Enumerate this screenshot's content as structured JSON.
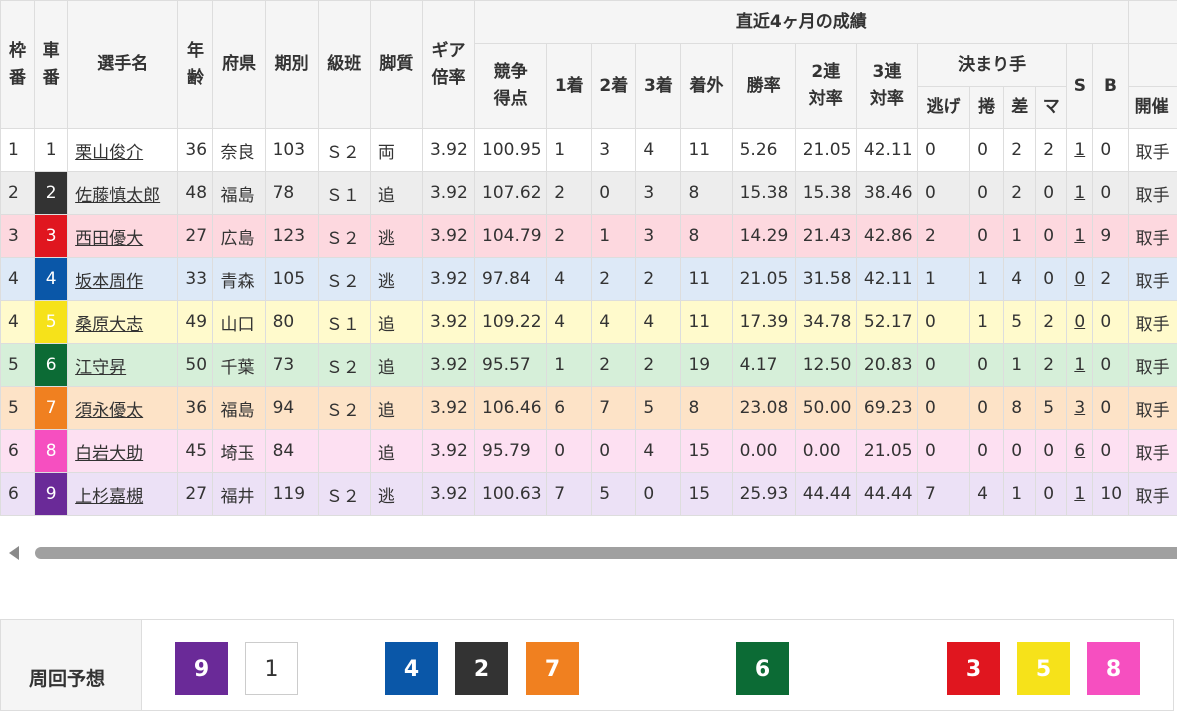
{
  "header": {
    "waku": "枠番",
    "sha": "車番",
    "name": "選手名",
    "age": "年齢",
    "pref": "府県",
    "term": "期別",
    "class": "級班",
    "leg": "脚質",
    "gear": "ギア倍率",
    "recent": "直近4ヶ月の成績",
    "score": "競争得点",
    "first": "1着",
    "second": "2着",
    "third": "3着",
    "out": "着外",
    "win": "勝率",
    "ren2": "2連対率",
    "ren3": "3連対率",
    "kimarite": "決まり手",
    "nige": "逃げ",
    "makuri": "捲",
    "sashi": "差",
    "mark": "マ",
    "s": "S",
    "b": "B",
    "kaisai": "開催"
  },
  "rows": [
    {
      "waku": "1",
      "sha": "1",
      "name": "栗山俊介",
      "age": "36",
      "pref": "奈良",
      "term": "103",
      "class": "Ｓ２",
      "leg": "両",
      "gear": "3.92",
      "score": "100.95",
      "r1": "1",
      "r2": "3",
      "r3": "4",
      "out": "11",
      "win": "5.26",
      "ren2": "21.05",
      "ren3": "42.11",
      "nige": "0",
      "makuri": "0",
      "sashi": "2",
      "mark": "2",
      "s": "1",
      "b": "0",
      "kaisai": "取手",
      "rowColor": "#ffffff",
      "badgeBg": "#ffffff",
      "badgeFg": "#333333"
    },
    {
      "waku": "2",
      "sha": "2",
      "name": "佐藤慎太郎",
      "age": "48",
      "pref": "福島",
      "term": "78",
      "class": "Ｓ１",
      "leg": "追",
      "gear": "3.92",
      "score": "107.62",
      "r1": "2",
      "r2": "0",
      "r3": "3",
      "out": "8",
      "win": "15.38",
      "ren2": "15.38",
      "ren3": "38.46",
      "nige": "0",
      "makuri": "0",
      "sashi": "2",
      "mark": "0",
      "s": "1",
      "b": "0",
      "kaisai": "取手",
      "rowColor": "#ededed",
      "badgeBg": "#333333",
      "badgeFg": "#ffffff"
    },
    {
      "waku": "3",
      "sha": "3",
      "name": "西田優大",
      "age": "27",
      "pref": "広島",
      "term": "123",
      "class": "Ｓ２",
      "leg": "逃",
      "gear": "3.92",
      "score": "104.79",
      "r1": "2",
      "r2": "1",
      "r3": "3",
      "out": "8",
      "win": "14.29",
      "ren2": "21.43",
      "ren3": "42.86",
      "nige": "2",
      "makuri": "0",
      "sashi": "1",
      "mark": "0",
      "s": "1",
      "b": "9",
      "kaisai": "取手",
      "rowColor": "#fdd8df",
      "badgeBg": "#e0161f",
      "badgeFg": "#ffffff"
    },
    {
      "waku": "4",
      "sha": "4",
      "name": "坂本周作",
      "age": "33",
      "pref": "青森",
      "term": "105",
      "class": "Ｓ２",
      "leg": "逃",
      "gear": "3.92",
      "score": "97.84",
      "r1": "4",
      "r2": "2",
      "r3": "2",
      "out": "11",
      "win": "21.05",
      "ren2": "31.58",
      "ren3": "42.11",
      "nige": "1",
      "makuri": "1",
      "sashi": "4",
      "mark": "0",
      "s": "0",
      "b": "2",
      "kaisai": "取手",
      "rowColor": "#dde9f7",
      "badgeBg": "#0a57a8",
      "badgeFg": "#ffffff"
    },
    {
      "waku": "4",
      "sha": "5",
      "name": "桑原大志",
      "age": "49",
      "pref": "山口",
      "term": "80",
      "class": "Ｓ１",
      "leg": "追",
      "gear": "3.92",
      "score": "109.22",
      "r1": "4",
      "r2": "4",
      "r3": "4",
      "out": "11",
      "win": "17.39",
      "ren2": "34.78",
      "ren3": "52.17",
      "nige": "0",
      "makuri": "1",
      "sashi": "5",
      "mark": "2",
      "s": "0",
      "b": "0",
      "kaisai": "取手",
      "rowColor": "#fffacc",
      "badgeBg": "#f6e21a",
      "badgeFg": "#ffffff"
    },
    {
      "waku": "5",
      "sha": "6",
      "name": "江守昇",
      "age": "50",
      "pref": "千葉",
      "term": "73",
      "class": "Ｓ２",
      "leg": "追",
      "gear": "3.92",
      "score": "95.57",
      "r1": "1",
      "r2": "2",
      "r3": "2",
      "out": "19",
      "win": "4.17",
      "ren2": "12.50",
      "ren3": "20.83",
      "nige": "0",
      "makuri": "0",
      "sashi": "1",
      "mark": "2",
      "s": "1",
      "b": "0",
      "kaisai": "取手",
      "rowColor": "#d6efd9",
      "badgeBg": "#0c6b35",
      "badgeFg": "#ffffff"
    },
    {
      "waku": "5",
      "sha": "7",
      "name": "須永優太",
      "age": "36",
      "pref": "福島",
      "term": "94",
      "class": "Ｓ２",
      "leg": "追",
      "gear": "3.92",
      "score": "106.46",
      "r1": "6",
      "r2": "7",
      "r3": "5",
      "out": "8",
      "win": "23.08",
      "ren2": "50.00",
      "ren3": "69.23",
      "nige": "0",
      "makuri": "0",
      "sashi": "8",
      "mark": "5",
      "s": "3",
      "b": "0",
      "kaisai": "取手",
      "rowColor": "#fde3c7",
      "badgeBg": "#f08020",
      "badgeFg": "#ffffff"
    },
    {
      "waku": "6",
      "sha": "8",
      "name": "白岩大助",
      "age": "45",
      "pref": "埼玉",
      "term": "84",
      "class": "",
      "leg": "追",
      "gear": "3.92",
      "score": "95.79",
      "r1": "0",
      "r2": "0",
      "r3": "4",
      "out": "15",
      "win": "0.00",
      "ren2": "0.00",
      "ren3": "21.05",
      "nige": "0",
      "makuri": "0",
      "sashi": "0",
      "mark": "0",
      "s": "6",
      "b": "0",
      "kaisai": "取手",
      "rowColor": "#fde0f2",
      "badgeBg": "#f64fc0",
      "badgeFg": "#ffffff"
    },
    {
      "waku": "6",
      "sha": "9",
      "name": "上杉嘉槻",
      "age": "27",
      "pref": "福井",
      "term": "119",
      "class": "Ｓ２",
      "leg": "逃",
      "gear": "3.92",
      "score": "100.63",
      "r1": "7",
      "r2": "5",
      "r3": "0",
      "out": "15",
      "win": "25.93",
      "ren2": "44.44",
      "ren3": "44.44",
      "nige": "7",
      "makuri": "4",
      "sashi": "1",
      "mark": "0",
      "s": "1",
      "b": "10",
      "kaisai": "取手",
      "rowColor": "#ece1f6",
      "badgeBg": "#6a2a98",
      "badgeFg": "#ffffff"
    }
  ],
  "prediction": {
    "label": "周回予想",
    "boxes": [
      {
        "num": "9",
        "bg": "#6a2a98",
        "fg": "#ffffff",
        "border": "#6a2a98"
      },
      {
        "num": "1",
        "bg": "#ffffff",
        "fg": "#333333",
        "border": "#cccccc"
      },
      {
        "num": "4",
        "bg": "#0a57a8",
        "fg": "#ffffff",
        "border": "#0a57a8"
      },
      {
        "num": "2",
        "bg": "#333333",
        "fg": "#ffffff",
        "border": "#333333"
      },
      {
        "num": "7",
        "bg": "#f08020",
        "fg": "#ffffff",
        "border": "#f08020"
      },
      {
        "num": "6",
        "bg": "#0c6b35",
        "fg": "#ffffff",
        "border": "#0c6b35"
      },
      {
        "num": "3",
        "bg": "#e0161f",
        "fg": "#ffffff",
        "border": "#e0161f"
      },
      {
        "num": "5",
        "bg": "#f6e21a",
        "fg": "#ffffff",
        "border": "#f6e21a"
      },
      {
        "num": "8",
        "bg": "#f64fc0",
        "fg": "#ffffff",
        "border": "#f64fc0"
      }
    ]
  }
}
